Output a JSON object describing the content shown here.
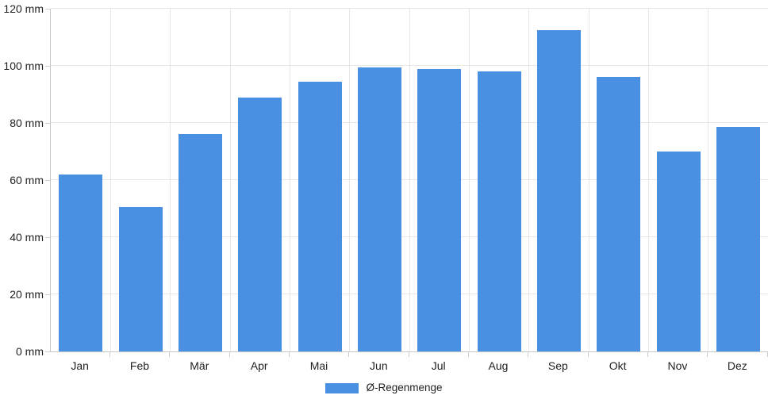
{
  "chart_data": {
    "type": "bar",
    "title": "",
    "categories": [
      "Jan",
      "Feb",
      "Mär",
      "Apr",
      "Mai",
      "Jun",
      "Jul",
      "Aug",
      "Sep",
      "Okt",
      "Nov",
      "Dez"
    ],
    "series": [
      {
        "name": "Ø-Regenmenge",
        "values": [
          62,
          50.5,
          76,
          89,
          94.5,
          99.5,
          99,
          98,
          112.5,
          96,
          70,
          78.5
        ]
      }
    ],
    "unit": "mm",
    "ylim": [
      0,
      120
    ],
    "ytick_step": 20,
    "ytick_labels": [
      "0 mm",
      "20 mm",
      "40 mm",
      "60 mm",
      "80 mm",
      "100 mm",
      "120 mm"
    ],
    "grid": true,
    "legend_position": "bottom",
    "bar_color": "#4A90E2",
    "grid_color": "#e7e7e7",
    "axis_color": "#c6c6c6",
    "text_color": "#1f1f1f"
  },
  "legend": {
    "label": "Ø-Regenmenge"
  }
}
